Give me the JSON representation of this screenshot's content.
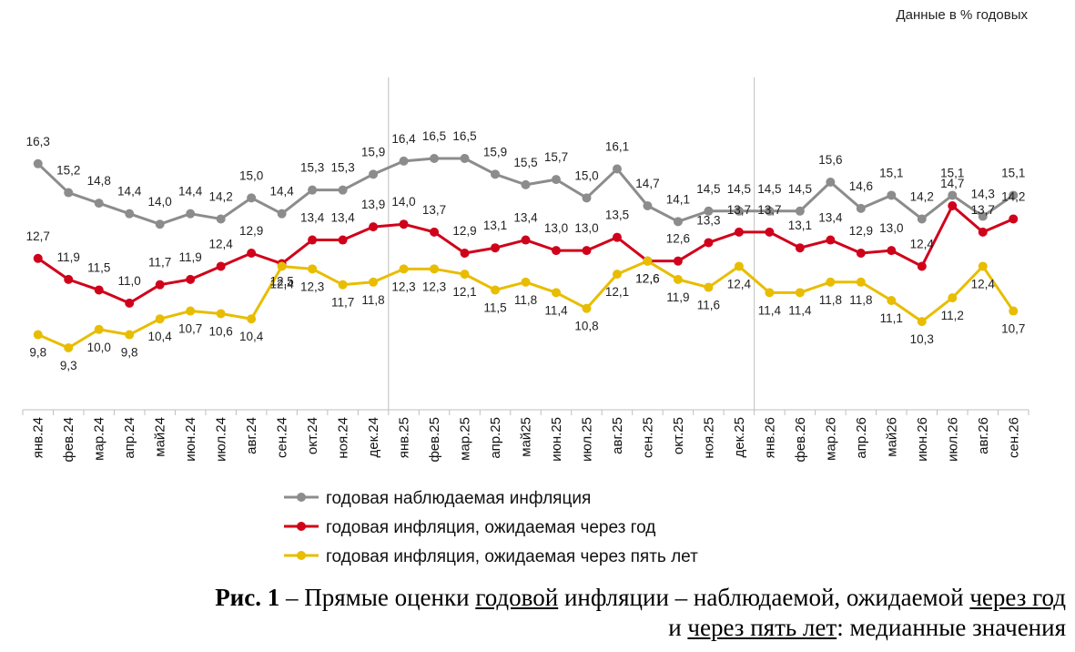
{
  "units_note": "Данные в % годовых",
  "caption": {
    "fig": "Рис. 1",
    "dash1": " – Прямые оценки ",
    "u1": "годовой",
    "mid1": " инфляции – наблюдаемой, ожидаемой ",
    "u2": "через год",
    "line2_pre": "и ",
    "u3": "через пять лет",
    "line2_post": ": медианные значения"
  },
  "chart_data": {
    "type": "line",
    "categories": [
      "янв.24",
      "фев.24",
      "мар.24",
      "апр.24",
      "май24",
      "июн.24",
      "июл.24",
      "авг.24",
      "сен.24",
      "окт.24",
      "ноя.24",
      "дек.24",
      "янв.25",
      "фев.25",
      "мар.25",
      "апр.25",
      "май25",
      "июн.25",
      "июл.25",
      "авг.25",
      "сен.25",
      "окт.25",
      "ноя.25",
      "дек.25",
      "янв.26",
      "фев.26",
      "мар.26",
      "апр.26",
      "май26",
      "июн.26",
      "июл.26",
      "авг.26",
      "сен.26"
    ],
    "ylim": [
      5,
      20
    ],
    "grid": false,
    "legend_position": "bottom",
    "series": [
      {
        "name": "годовая наблюдаемая инфляция",
        "color": "#8c8c8c",
        "values": [
          16.3,
          15.2,
          14.8,
          14.4,
          14.0,
          14.4,
          14.2,
          15.0,
          14.4,
          15.3,
          15.3,
          15.9,
          16.4,
          16.5,
          16.5,
          15.9,
          15.5,
          15.7,
          15.0,
          16.1,
          14.7,
          14.1,
          14.5,
          14.5,
          14.5,
          14.5,
          15.6,
          14.6,
          15.1,
          14.2,
          15.1,
          14.3,
          15.1
        ],
        "labels": [
          "16,3",
          "15,2",
          "14,8",
          "14,4",
          "14,0",
          "14,4",
          "14,2",
          "15,0",
          "14,4",
          "15,3",
          "15,3",
          "15,9",
          "16,4",
          "16,5",
          "16,5",
          "15,9",
          "15,5",
          "15,7",
          "15,0",
          "16,1",
          "14,7",
          "14,1",
          "14,5",
          "14,5",
          "14,5",
          "14,5",
          "15,6",
          "14,6",
          "15,1",
          "14,2",
          "15,1",
          "14,3",
          "15,1"
        ]
      },
      {
        "name": "годовая инфляция, ожидаемая через год",
        "color": "#d0021b",
        "values": [
          12.7,
          11.9,
          11.5,
          11.0,
          11.7,
          11.9,
          12.4,
          12.9,
          12.5,
          13.4,
          13.4,
          13.9,
          14.0,
          13.7,
          12.9,
          13.1,
          13.4,
          13.0,
          13.0,
          13.5,
          12.6,
          12.6,
          13.3,
          13.7,
          13.7,
          13.1,
          13.4,
          12.9,
          13.0,
          12.4,
          14.7,
          13.7,
          14.2
        ],
        "labels": [
          "12,7",
          "11,9",
          "11,5",
          "11,0",
          "11,7",
          "11,9",
          "12,4",
          "12,9",
          "12,5",
          "13,4",
          "13,4",
          "13,9",
          "14,0",
          "13,7",
          "12,9",
          "13,1",
          "13,4",
          "13,0",
          "13,0",
          "13,5",
          "12,6",
          "12,6",
          "13,3",
          "13,7",
          "13,7",
          "13,1",
          "13,4",
          "12,9",
          "13,0",
          "12,4",
          "14,7",
          "13,7",
          "14,2"
        ]
      },
      {
        "name": "годовая инфляция, ожидаемая через пять лет",
        "color": "#e8bd00",
        "values": [
          9.8,
          9.3,
          10.0,
          9.8,
          10.4,
          10.7,
          10.6,
          10.4,
          12.4,
          12.3,
          11.7,
          11.8,
          12.3,
          12.3,
          12.1,
          11.5,
          11.8,
          11.4,
          10.8,
          12.1,
          12.6,
          11.9,
          11.6,
          12.4,
          11.4,
          11.4,
          11.8,
          11.8,
          11.1,
          10.3,
          11.2,
          12.4,
          10.7
        ],
        "labels": [
          "9,8",
          "9,3",
          "10,0",
          "9,8",
          "10,4",
          "10,7",
          "10,6",
          "10,4",
          "12,4",
          "12,3",
          "11,7",
          "11,8",
          "12,3",
          "12,3",
          "12,1",
          "11,5",
          "11,8",
          "11,4",
          "10,8",
          "12,1",
          "12,6",
          "11,9",
          "11,6",
          "12,4",
          "11,4",
          "11,4",
          "11,8",
          "11,8",
          "11,1",
          "10,3",
          "11,2",
          "12,4",
          "10,7"
        ]
      }
    ]
  }
}
